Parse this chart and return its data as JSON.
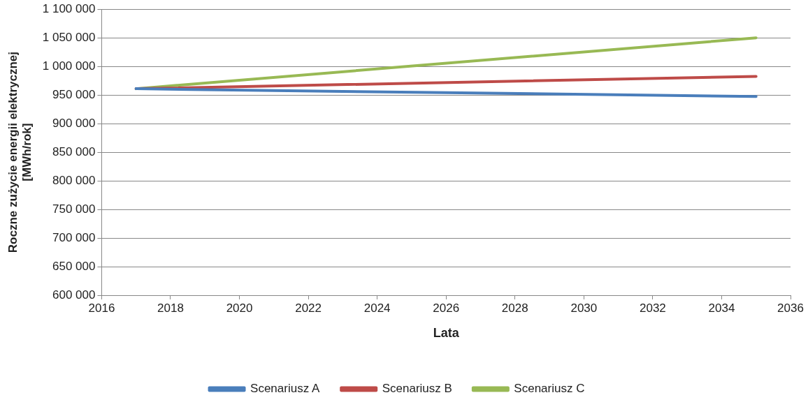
{
  "chart_data": {
    "type": "line",
    "xlabel": "Lata",
    "ylabel": "Roczne zużycie energii elektrycznej\n[MWh/rok]",
    "xlim": [
      2016,
      2036
    ],
    "xticks": [
      2016,
      2018,
      2020,
      2022,
      2024,
      2026,
      2028,
      2030,
      2032,
      2034,
      2036
    ],
    "ylim": [
      600000,
      1100000
    ],
    "yticks": [
      {
        "value": 600000,
        "label": "600 000"
      },
      {
        "value": 650000,
        "label": "650 000"
      },
      {
        "value": 700000,
        "label": "700 000"
      },
      {
        "value": 750000,
        "label": "750 000"
      },
      {
        "value": 800000,
        "label": "800 000"
      },
      {
        "value": 850000,
        "label": "850 000"
      },
      {
        "value": 900000,
        "label": "900 000"
      },
      {
        "value": 950000,
        "label": "950 000"
      },
      {
        "value": 1000000,
        "label": "1 000 000"
      },
      {
        "value": 1050000,
        "label": "1 050 000"
      },
      {
        "value": 1100000,
        "label": "1 100 000"
      }
    ],
    "series": [
      {
        "name": "Scenariusz A",
        "color": "#4a7ebb",
        "x": [
          2017,
          2026,
          2035
        ],
        "values": [
          961000,
          954000,
          947500
        ]
      },
      {
        "name": "Scenariusz B",
        "color": "#be4b48",
        "x": [
          2017,
          2035
        ],
        "values": [
          961000,
          982500
        ]
      },
      {
        "name": "Scenariusz C",
        "color": "#98b954",
        "x": [
          2017,
          2035
        ],
        "values": [
          961000,
          1050000
        ]
      }
    ],
    "grid": "y",
    "legend": "bottom",
    "marker": "none",
    "line_style": "solid"
  }
}
